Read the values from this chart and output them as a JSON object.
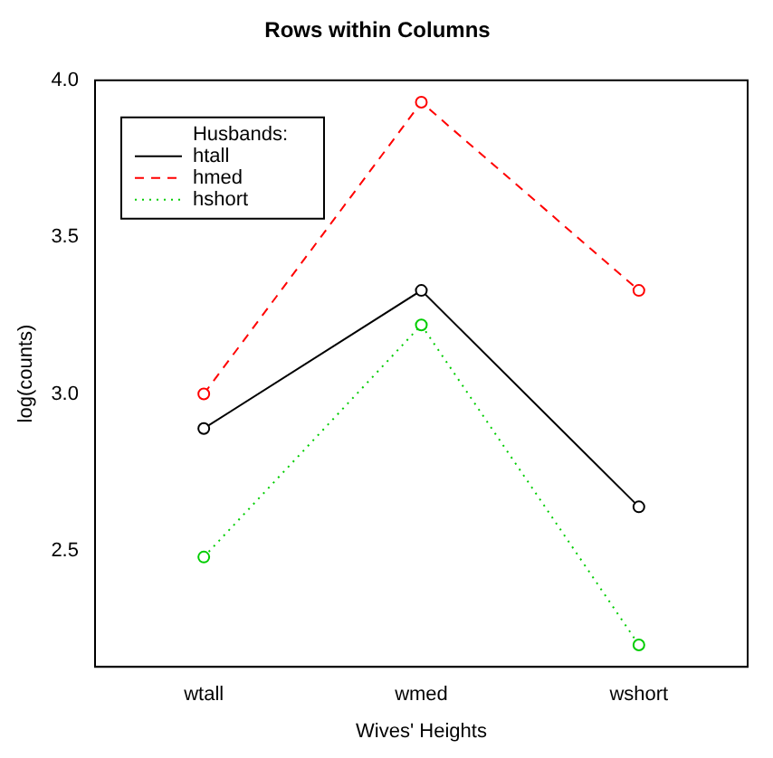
{
  "chart_data": {
    "type": "line",
    "title": "Rows within Columns",
    "xlabel": "Wives' Heights",
    "ylabel": "log(counts)",
    "categories": [
      "wtall",
      "wmed",
      "wshort"
    ],
    "series": [
      {
        "name": "htall",
        "color": "#000000",
        "line_style": "solid",
        "values": [
          2.89,
          3.33,
          2.64
        ]
      },
      {
        "name": "hmed",
        "color": "#ff0000",
        "line_style": "dashed",
        "values": [
          3.0,
          3.93,
          3.33
        ]
      },
      {
        "name": "hshort",
        "color": "#00cd00",
        "line_style": "dotted",
        "values": [
          2.48,
          3.22,
          2.2
        ]
      }
    ],
    "legend_title": "Husbands:",
    "legend": "top left",
    "marker": "circle",
    "grid": false,
    "ylim": [
      2.13,
      4.0
    ],
    "yticks": [
      2.5,
      {
        "value": 3,
        "label": "3.0"
      },
      3.5,
      {
        "value": 4,
        "label": "4.0"
      }
    ]
  }
}
